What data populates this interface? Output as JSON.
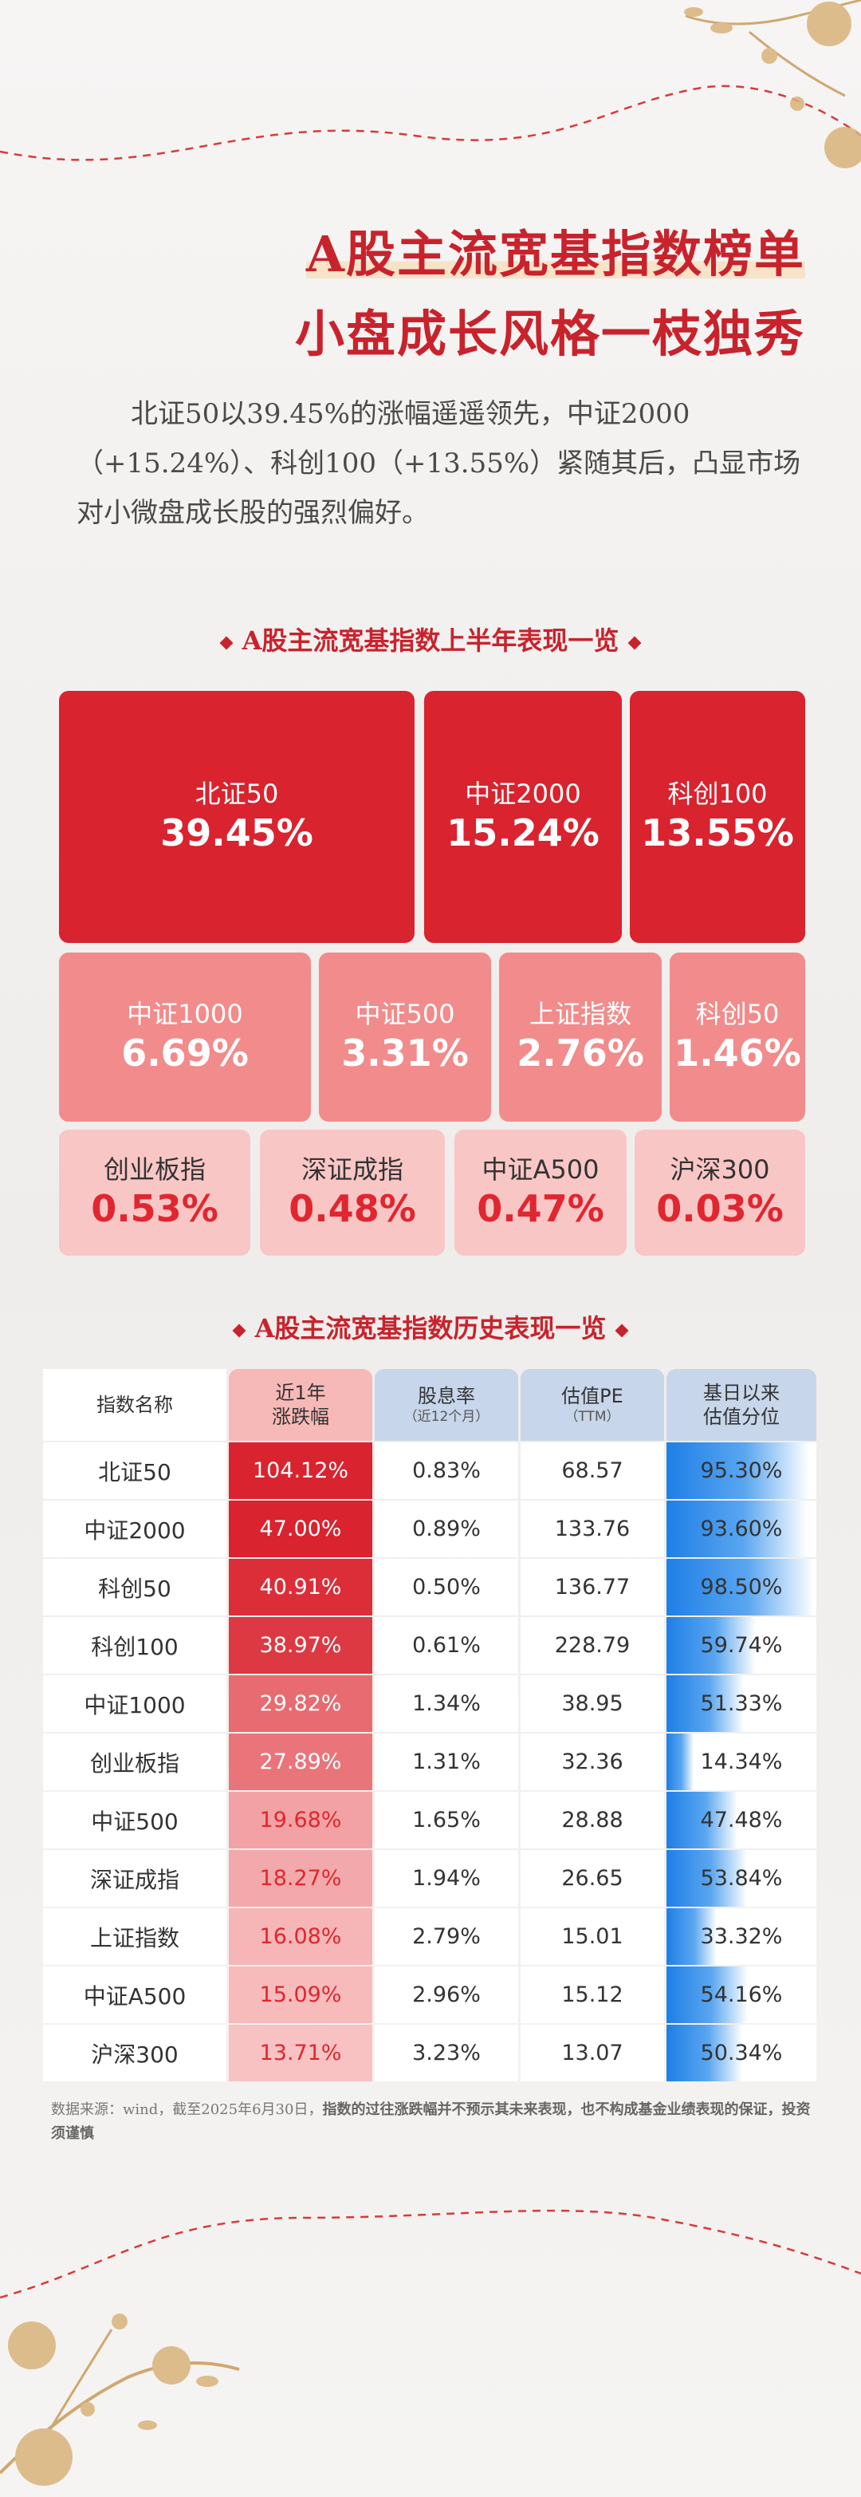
{
  "header": {
    "title_line1": "A股主流宽基指数榜单",
    "title_line2": "小盘成长风格一枝独秀",
    "intro": "北证50以39.45%的涨幅遥遥领先，中证2000（+15.24%）、科创100（+13.55%）紧随其后，凸显市场对小微盘成长股的强烈偏好。"
  },
  "section1": {
    "title": "A股主流宽基指数上半年表现一览"
  },
  "treemap": [
    {
      "name": "北证50",
      "value": "39.45%",
      "return_pct": 39.45
    },
    {
      "name": "中证2000",
      "value": "15.24%",
      "return_pct": 15.24
    },
    {
      "name": "科创100",
      "value": "13.55%",
      "return_pct": 13.55
    },
    {
      "name": "中证1000",
      "value": "6.69%",
      "return_pct": 6.69
    },
    {
      "name": "中证500",
      "value": "3.31%",
      "return_pct": 3.31
    },
    {
      "name": "上证指数",
      "value": "2.76%",
      "return_pct": 2.76
    },
    {
      "name": "科创50",
      "value": "1.46%",
      "return_pct": 1.46
    },
    {
      "name": "创业板指",
      "value": "0.53%",
      "return_pct": 0.53
    },
    {
      "name": "深证成指",
      "value": "0.48%",
      "return_pct": 0.48
    },
    {
      "name": "中证A500",
      "value": "0.47%",
      "return_pct": 0.47
    },
    {
      "name": "沪深300",
      "value": "0.03%",
      "return_pct": 0.03
    }
  ],
  "section2": {
    "title": "A股主流宽基指数历史表现一览"
  },
  "table": {
    "headers": [
      {
        "label": "指数名称",
        "sub": ""
      },
      {
        "label": "近1年 涨跌幅",
        "sub": ""
      },
      {
        "label": "股息率",
        "sub": "（近12个月）"
      },
      {
        "label": "估值PE",
        "sub": "（TTM）"
      },
      {
        "label": "基日以来 估值分位",
        "sub": ""
      }
    ],
    "header_lines": {
      "c2a": "近1年",
      "c2b": "涨跌幅",
      "c5a": "基日以来",
      "c5b": "估值分位"
    },
    "colors": {
      "strong_red": "#d9232e",
      "light_red": "#f9c6c6",
      "blue": "#1e7fe6"
    },
    "rows": [
      {
        "name": "北证50",
        "ret": "104.12%",
        "ret_val": 104.12,
        "div": "0.83%",
        "pe": "68.57",
        "pct": "95.30%",
        "pct_val": 95.3
      },
      {
        "name": "中证2000",
        "ret": "47.00%",
        "ret_val": 47.0,
        "div": "0.89%",
        "pe": "133.76",
        "pct": "93.60%",
        "pct_val": 93.6
      },
      {
        "name": "科创50",
        "ret": "40.91%",
        "ret_val": 40.91,
        "div": "0.50%",
        "pe": "136.77",
        "pct": "98.50%",
        "pct_val": 98.5
      },
      {
        "name": "科创100",
        "ret": "38.97%",
        "ret_val": 38.97,
        "div": "0.61%",
        "pe": "228.79",
        "pct": "59.74%",
        "pct_val": 59.74
      },
      {
        "name": "中证1000",
        "ret": "29.82%",
        "ret_val": 29.82,
        "div": "1.34%",
        "pe": "38.95",
        "pct": "51.33%",
        "pct_val": 51.33
      },
      {
        "name": "创业板指",
        "ret": "27.89%",
        "ret_val": 27.89,
        "div": "1.31%",
        "pe": "32.36",
        "pct": "14.34%",
        "pct_val": 14.34
      },
      {
        "name": "中证500",
        "ret": "19.68%",
        "ret_val": 19.68,
        "div": "1.65%",
        "pe": "28.88",
        "pct": "47.48%",
        "pct_val": 47.48
      },
      {
        "name": "深证成指",
        "ret": "18.27%",
        "ret_val": 18.27,
        "div": "1.94%",
        "pe": "26.65",
        "pct": "53.84%",
        "pct_val": 53.84
      },
      {
        "name": "上证指数",
        "ret": "16.08%",
        "ret_val": 16.08,
        "div": "2.79%",
        "pe": "15.01",
        "pct": "33.32%",
        "pct_val": 33.32
      },
      {
        "name": "中证A500",
        "ret": "15.09%",
        "ret_val": 15.09,
        "div": "2.96%",
        "pe": "15.12",
        "pct": "54.16%",
        "pct_val": 54.16
      },
      {
        "name": "沪深300",
        "ret": "13.71%",
        "ret_val": 13.71,
        "div": "3.23%",
        "pe": "13.07",
        "pct": "50.34%",
        "pct_val": 50.34
      }
    ]
  },
  "footnote": {
    "source": "数据来源：wind，截至2025年6月30日，",
    "disclaimer": "指数的过往涨跌幅并不预示其未来表现，也不构成基金业绩表现的保证，投资须谨慎"
  }
}
